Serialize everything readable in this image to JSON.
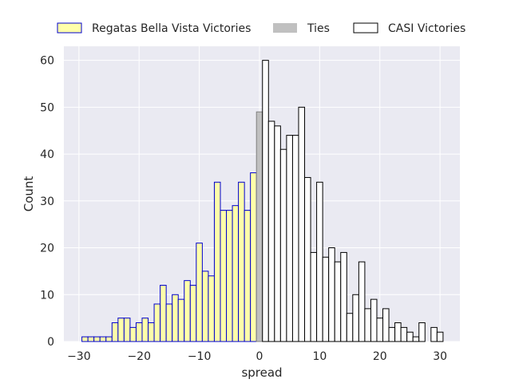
{
  "chart_data": {
    "type": "bar",
    "xlabel": "spread",
    "ylabel": "Count",
    "xlim": [
      -32.5,
      33.3
    ],
    "ylim": [
      0,
      63
    ],
    "xticks": [
      -30,
      -20,
      -10,
      0,
      10,
      20,
      30
    ],
    "yticks": [
      0,
      10,
      20,
      30,
      40,
      50,
      60
    ],
    "grid": true,
    "legend_position": "top",
    "bin_width": 1,
    "series": [
      {
        "name": "Regatas Bella Vista Victories",
        "fill": "#ffffaa",
        "edge": "#0000cc",
        "x": [
          -29,
          -28,
          -27,
          -26,
          -25,
          -24,
          -23,
          -22,
          -21,
          -20,
          -19,
          -18,
          -17,
          -16,
          -15,
          -14,
          -13,
          -12,
          -11,
          -10,
          -9,
          -8,
          -7,
          -6,
          -5,
          -4,
          -3,
          -2,
          -1
        ],
        "values": [
          1,
          1,
          1,
          1,
          1,
          4,
          5,
          5,
          3,
          4,
          5,
          4,
          8,
          12,
          8,
          10,
          9,
          13,
          12,
          21,
          15,
          14,
          34,
          28,
          28,
          29,
          34,
          28,
          36
        ]
      },
      {
        "name": "Ties",
        "fill": "#c0c0c0",
        "edge": "#808080",
        "x": [
          0
        ],
        "values": [
          49
        ]
      },
      {
        "name": "CASI Victories",
        "fill": "#ffffff",
        "edge": "#000000",
        "x": [
          1,
          2,
          3,
          4,
          5,
          6,
          7,
          8,
          9,
          10,
          11,
          12,
          13,
          14,
          15,
          16,
          17,
          18,
          19,
          20,
          21,
          22,
          23,
          24,
          25,
          26,
          27,
          28,
          29,
          30
        ],
        "values": [
          60,
          47,
          46,
          41,
          44,
          44,
          50,
          35,
          19,
          34,
          18,
          20,
          17,
          19,
          6,
          10,
          17,
          7,
          9,
          5,
          7,
          3,
          4,
          3,
          2,
          1,
          4,
          0,
          3,
          2
        ]
      }
    ]
  }
}
